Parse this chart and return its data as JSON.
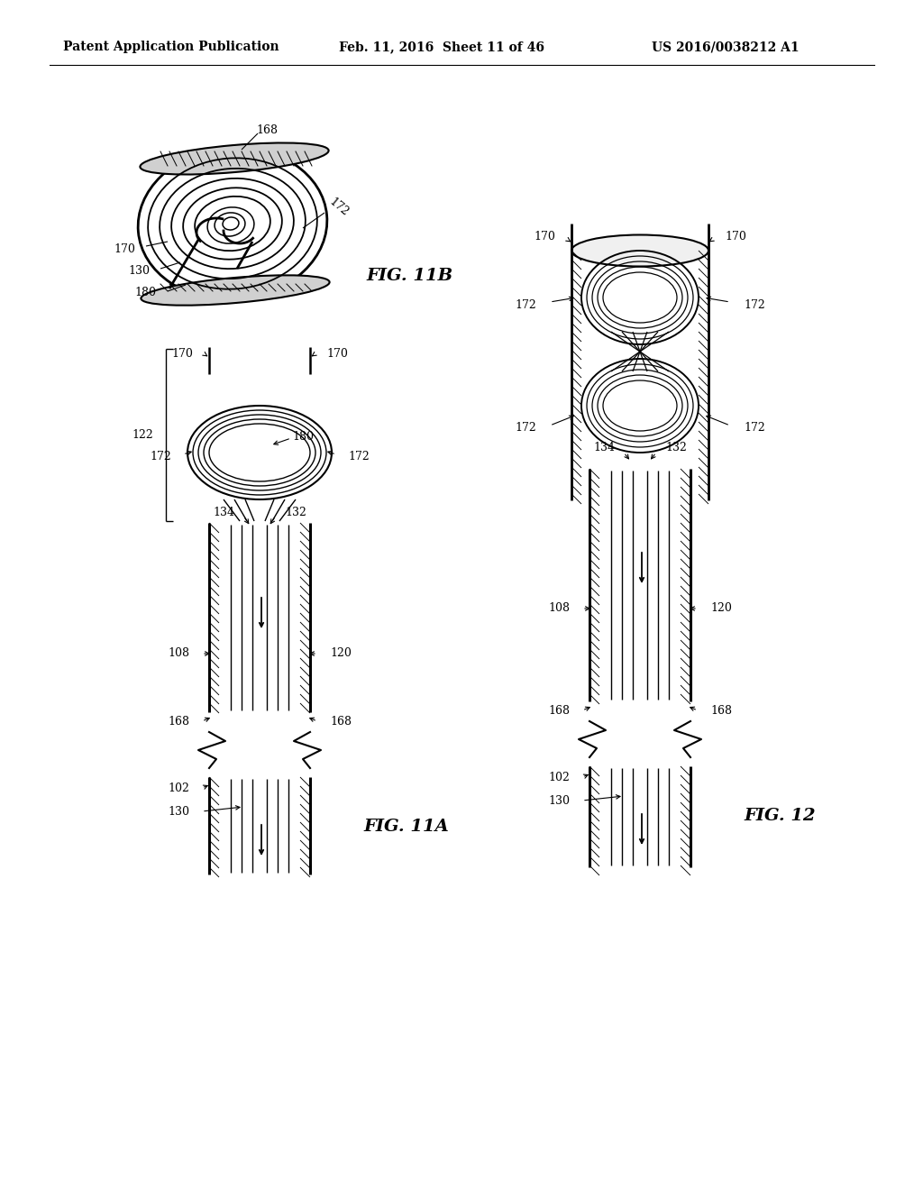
{
  "bg_color": "#ffffff",
  "header_left": "Patent Application Publication",
  "header_mid": "Feb. 11, 2016  Sheet 11 of 46",
  "header_right": "US 2016/0038212 A1",
  "fig11b_label": "FIG. 11B",
  "fig11a_label": "FIG. 11A",
  "fig12_label": "FIG. 12",
  "line_color": "#000000",
  "text_color": "#000000"
}
